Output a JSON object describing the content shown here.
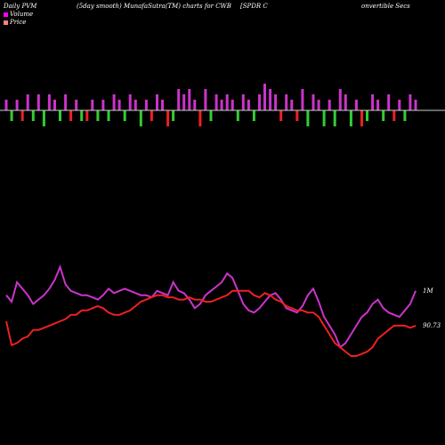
{
  "header": {
    "left": "Daily PVM",
    "middle": "(5day smooth) MunafaSutra(TM) charts for CWB",
    "right_a": "[SPDR C",
    "right_b": "onvertible  Secs"
  },
  "legend": [
    {
      "label": "Volume",
      "color": "#ff00ff"
    },
    {
      "label": "Price",
      "color": "#ff8080"
    }
  ],
  "labels": {
    "volume_end": "1M",
    "price_end": "90.73"
  },
  "colors": {
    "background": "#000000",
    "volume_line": "#cc33cc",
    "price_line": "#ee2020",
    "bar_up": "#cc33cc",
    "bar_down_red": "#ee2020",
    "bar_down_green": "#33cc33",
    "baseline": "#cccccc"
  },
  "chart_data": {
    "type": "line",
    "title": "(5day smooth) MunafaSutra(TM) charts for CWB",
    "series": [
      {
        "name": "Volume",
        "values": [
          42,
          39,
          48,
          45,
          42,
          38,
          40,
          42,
          45,
          49,
          55,
          47,
          44,
          43,
          42,
          42,
          41,
          40,
          42,
          45,
          43,
          44,
          45,
          44,
          43,
          42,
          42,
          41,
          44,
          43,
          42,
          48,
          44,
          43,
          40,
          36,
          38,
          42,
          44,
          46,
          48,
          52,
          50,
          44,
          38,
          35,
          34,
          36,
          39,
          42,
          43,
          40,
          36,
          35,
          34,
          37,
          42,
          45,
          39,
          32,
          28,
          24,
          18,
          20,
          24,
          28,
          32,
          34,
          38,
          40,
          36,
          34,
          33,
          32,
          35,
          38,
          44
        ]
      },
      {
        "name": "Price",
        "values": [
          30,
          19,
          20,
          22,
          23,
          26,
          26,
          27,
          28,
          29,
          30,
          31,
          33,
          33,
          35,
          35,
          36,
          37,
          36,
          34,
          33,
          33,
          34,
          35,
          37,
          39,
          40,
          41,
          42,
          42,
          41,
          41,
          40,
          40,
          41,
          40,
          40,
          39,
          39,
          40,
          41,
          42,
          44,
          44,
          44,
          44,
          42,
          41,
          43,
          42,
          40,
          39,
          37,
          36,
          35,
          35,
          34,
          34,
          32,
          28,
          24,
          20,
          18,
          16,
          14,
          14,
          15,
          16,
          18,
          22,
          24,
          26,
          28,
          28,
          28,
          27,
          28
        ]
      }
    ],
    "bars": {
      "values": [
        2,
        -2,
        2,
        -2,
        3,
        -2,
        3,
        -3,
        3,
        2,
        -2,
        3,
        -2,
        2,
        -2,
        -2,
        2,
        -2,
        2,
        -2,
        3,
        2,
        -2,
        3,
        2,
        -3,
        2,
        -2,
        3,
        2,
        -3,
        -2,
        4,
        3,
        4,
        2,
        -3,
        4,
        -2,
        3,
        2,
        3,
        2,
        -2,
        3,
        2,
        -2,
        3,
        5,
        4,
        3,
        -2,
        3,
        2,
        -2,
        4,
        -3,
        3,
        2,
        -3,
        2,
        -3,
        4,
        3,
        -3,
        2,
        -3,
        -2,
        3,
        2,
        -2,
        3,
        -2,
        2,
        -2,
        3,
        2
      ]
    },
    "xlabel": "",
    "ylabel": ""
  }
}
